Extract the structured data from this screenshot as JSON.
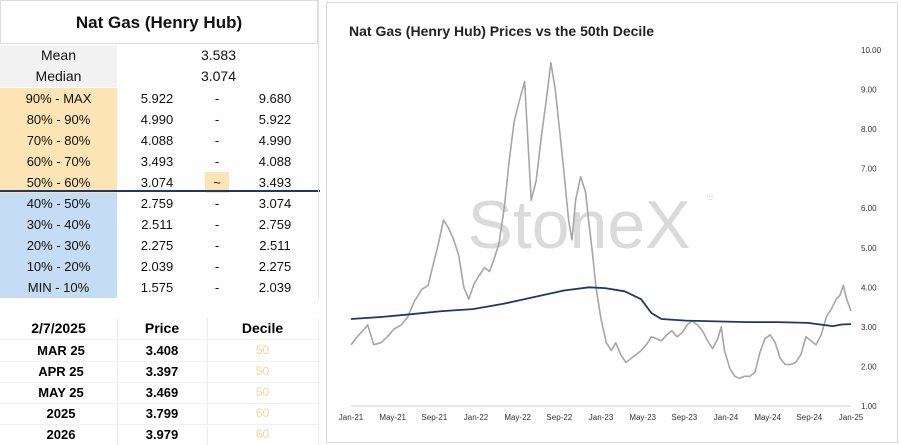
{
  "table": {
    "title": "Nat Gas (Henry Hub)",
    "stats": [
      {
        "label": "Mean",
        "value": "3.583"
      },
      {
        "label": "Median",
        "value": "3.074"
      }
    ],
    "bands": [
      {
        "label": "90% - MAX",
        "low": "5.922",
        "sep": "-",
        "high": "9.680",
        "color": "orange"
      },
      {
        "label": "80% - 90%",
        "low": "4.990",
        "sep": "-",
        "high": "5.922",
        "color": "orange"
      },
      {
        "label": "70% - 80%",
        "low": "4.088",
        "sep": "-",
        "high": "4.990",
        "color": "orange"
      },
      {
        "label": "60% - 70%",
        "low": "3.493",
        "sep": "-",
        "high": "4.088",
        "color": "orange"
      },
      {
        "label": "50% - 60%",
        "low": "3.074",
        "sep": "~",
        "high": "3.493",
        "color": "orange"
      },
      {
        "label": "40% - 50%",
        "low": "2.759",
        "sep": "-",
        "high": "3.074",
        "color": "blue"
      },
      {
        "label": "30% - 40%",
        "low": "2.511",
        "sep": "-",
        "high": "2.759",
        "color": "blue"
      },
      {
        "label": "20% - 30%",
        "low": "2.275",
        "sep": "-",
        "high": "2.511",
        "color": "blue"
      },
      {
        "label": "10% - 20%",
        "low": "2.039",
        "sep": "-",
        "high": "2.275",
        "color": "blue"
      },
      {
        "label": "MIN - 10%",
        "low": "1.575",
        "sep": "-",
        "high": "2.039",
        "color": "blue"
      }
    ]
  },
  "contracts": {
    "date": "2/7/2025",
    "price_header": "Price",
    "decile_header": "Decile",
    "rows": [
      {
        "label": "MAR 25",
        "price": "3.408",
        "decile": "50"
      },
      {
        "label": "APR 25",
        "price": "3.397",
        "decile": "50"
      },
      {
        "label": "MAY 25",
        "price": "3.469",
        "decile": "50"
      },
      {
        "label": "2025",
        "price": "3.799",
        "decile": "60"
      },
      {
        "label": "2026",
        "price": "3.979",
        "decile": "60"
      }
    ]
  },
  "chart_data": {
    "type": "line",
    "title": "Nat Gas (Henry Hub) Prices vs the 50th Decile",
    "watermark": "StoneX",
    "xlabel": "",
    "ylabel": "",
    "ylim": [
      1.0,
      10.0
    ],
    "yticks": [
      "10.00",
      "9.00",
      "8.00",
      "7.00",
      "6.00",
      "5.00",
      "4.00",
      "3.00",
      "2.00",
      "1.00"
    ],
    "xticks": [
      "Jan-21",
      "May-21",
      "Sep-21",
      "Jan-22",
      "May-22",
      "Sep-22",
      "Jan-23",
      "May-23",
      "Sep-23",
      "Jan-24",
      "May-24",
      "Sep-24",
      "Jan-25"
    ],
    "grid": false,
    "series": [
      {
        "color": "#a6a6a6",
        "points": [
          [
            "2021-01-01",
            2.55
          ],
          [
            "2021-01-20",
            2.75
          ],
          [
            "2021-02-10",
            2.95
          ],
          [
            "2021-02-20",
            3.05
          ],
          [
            "2021-03-10",
            2.55
          ],
          [
            "2021-04-01",
            2.6
          ],
          [
            "2021-04-20",
            2.75
          ],
          [
            "2021-05-10",
            2.95
          ],
          [
            "2021-06-01",
            3.05
          ],
          [
            "2021-06-20",
            3.25
          ],
          [
            "2021-07-10",
            3.65
          ],
          [
            "2021-08-01",
            3.95
          ],
          [
            "2021-08-20",
            4.05
          ],
          [
            "2021-09-05",
            4.6
          ],
          [
            "2021-09-20",
            5.1
          ],
          [
            "2021-10-05",
            5.7
          ],
          [
            "2021-10-20",
            5.5
          ],
          [
            "2021-11-05",
            5.2
          ],
          [
            "2021-11-20",
            4.8
          ],
          [
            "2021-12-05",
            4.0
          ],
          [
            "2021-12-20",
            3.7
          ],
          [
            "2022-01-05",
            4.1
          ],
          [
            "2022-01-20",
            4.3
          ],
          [
            "2022-02-05",
            4.5
          ],
          [
            "2022-02-20",
            4.4
          ],
          [
            "2022-03-05",
            4.7
          ],
          [
            "2022-03-20",
            5.1
          ],
          [
            "2022-04-05",
            6.0
          ],
          [
            "2022-04-20",
            7.2
          ],
          [
            "2022-05-05",
            8.2
          ],
          [
            "2022-05-20",
            8.7
          ],
          [
            "2022-06-05",
            9.2
          ],
          [
            "2022-06-15",
            7.7
          ],
          [
            "2022-06-25",
            6.2
          ],
          [
            "2022-07-10",
            6.7
          ],
          [
            "2022-07-25",
            7.8
          ],
          [
            "2022-08-10",
            8.8
          ],
          [
            "2022-08-23",
            9.68
          ],
          [
            "2022-09-05",
            9.0
          ],
          [
            "2022-09-20",
            7.8
          ],
          [
            "2022-10-01",
            6.9
          ],
          [
            "2022-10-15",
            5.7
          ],
          [
            "2022-10-25",
            5.2
          ],
          [
            "2022-11-05",
            6.2
          ],
          [
            "2022-11-20",
            6.8
          ],
          [
            "2022-12-05",
            6.4
          ],
          [
            "2022-12-15",
            5.6
          ],
          [
            "2022-12-25",
            4.9
          ],
          [
            "2023-01-05",
            4.0
          ],
          [
            "2023-01-20",
            3.2
          ],
          [
            "2023-02-05",
            2.6
          ],
          [
            "2023-02-20",
            2.4
          ],
          [
            "2023-03-05",
            2.6
          ],
          [
            "2023-03-20",
            2.3
          ],
          [
            "2023-04-05",
            2.1
          ],
          [
            "2023-04-20",
            2.2
          ],
          [
            "2023-05-05",
            2.3
          ],
          [
            "2023-05-20",
            2.4
          ],
          [
            "2023-06-05",
            2.55
          ],
          [
            "2023-06-20",
            2.75
          ],
          [
            "2023-07-05",
            2.7
          ],
          [
            "2023-07-20",
            2.65
          ],
          [
            "2023-08-05",
            2.8
          ],
          [
            "2023-08-20",
            2.9
          ],
          [
            "2023-09-05",
            2.75
          ],
          [
            "2023-09-20",
            2.85
          ],
          [
            "2023-10-05",
            3.05
          ],
          [
            "2023-10-20",
            3.15
          ],
          [
            "2023-11-05",
            3.05
          ],
          [
            "2023-11-20",
            2.9
          ],
          [
            "2023-12-05",
            2.65
          ],
          [
            "2023-12-20",
            2.45
          ],
          [
            "2024-01-05",
            2.7
          ],
          [
            "2024-01-15",
            3.0
          ],
          [
            "2024-01-25",
            2.4
          ],
          [
            "2024-02-10",
            1.95
          ],
          [
            "2024-02-25",
            1.75
          ],
          [
            "2024-03-10",
            1.7
          ],
          [
            "2024-03-25",
            1.75
          ],
          [
            "2024-04-10",
            1.75
          ],
          [
            "2024-04-25",
            1.85
          ],
          [
            "2024-05-10",
            2.35
          ],
          [
            "2024-05-25",
            2.7
          ],
          [
            "2024-06-10",
            2.8
          ],
          [
            "2024-06-25",
            2.6
          ],
          [
            "2024-07-10",
            2.2
          ],
          [
            "2024-07-25",
            2.05
          ],
          [
            "2024-08-10",
            2.05
          ],
          [
            "2024-08-25",
            2.1
          ],
          [
            "2024-09-10",
            2.3
          ],
          [
            "2024-09-25",
            2.75
          ],
          [
            "2024-10-10",
            2.65
          ],
          [
            "2024-10-25",
            2.55
          ],
          [
            "2024-11-10",
            2.8
          ],
          [
            "2024-11-25",
            3.25
          ],
          [
            "2024-12-10",
            3.45
          ],
          [
            "2024-12-25",
            3.7
          ],
          [
            "2025-01-05",
            3.8
          ],
          [
            "2025-01-15",
            4.05
          ],
          [
            "2025-01-25",
            3.7
          ],
          [
            "2025-02-07",
            3.4
          ]
        ]
      },
      {
        "color": "#1f3864",
        "points": [
          [
            "2021-01-01",
            3.2
          ],
          [
            "2021-04-01",
            3.25
          ],
          [
            "2021-07-01",
            3.32
          ],
          [
            "2021-10-01",
            3.4
          ],
          [
            "2022-01-01",
            3.45
          ],
          [
            "2022-04-01",
            3.58
          ],
          [
            "2022-07-01",
            3.75
          ],
          [
            "2022-10-01",
            3.92
          ],
          [
            "2022-12-15",
            4.0
          ],
          [
            "2023-02-01",
            3.98
          ],
          [
            "2023-04-01",
            3.9
          ],
          [
            "2023-05-20",
            3.7
          ],
          [
            "2023-06-20",
            3.35
          ],
          [
            "2023-07-20",
            3.2
          ],
          [
            "2023-10-01",
            3.16
          ],
          [
            "2024-01-01",
            3.14
          ],
          [
            "2024-04-01",
            3.12
          ],
          [
            "2024-07-01",
            3.12
          ],
          [
            "2024-10-01",
            3.1
          ],
          [
            "2024-11-15",
            3.05
          ],
          [
            "2024-12-15",
            3.02
          ],
          [
            "2025-01-10",
            3.06
          ],
          [
            "2025-02-07",
            3.07
          ]
        ]
      }
    ]
  }
}
